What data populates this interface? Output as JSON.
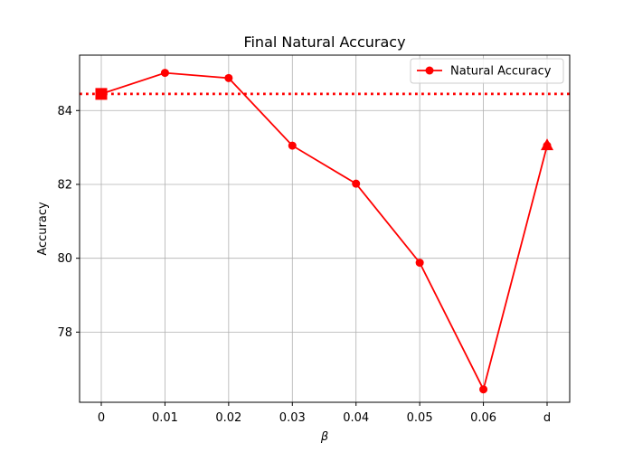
{
  "chart_data": {
    "type": "line",
    "title": "Final Natural Accuracy",
    "xlabel": "β",
    "ylabel": "Accuracy",
    "categories": [
      "0",
      "0.01",
      "0.02",
      "0.03",
      "0.04",
      "0.05",
      "0.06",
      "d"
    ],
    "ylim": [
      76.1,
      85.5
    ],
    "yticks": [
      78,
      80,
      82,
      84
    ],
    "grid": true,
    "legend_position": "top-right",
    "baseline": 84.45,
    "series": [
      {
        "name": "Natural Accuracy",
        "color": "#ff0000",
        "marker": "circle",
        "values": [
          84.45,
          85.02,
          84.88,
          83.05,
          82.02,
          79.88,
          76.45,
          83.05
        ]
      }
    ],
    "special_markers": [
      {
        "category": "0",
        "value": 84.45,
        "shape": "square",
        "color": "#ff0000"
      },
      {
        "category": "d",
        "value": 83.05,
        "shape": "triangle",
        "color": "#ff0000"
      }
    ]
  }
}
